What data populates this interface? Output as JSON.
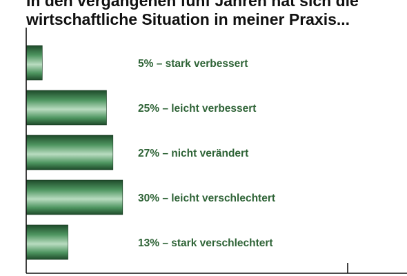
{
  "title_lines": [
    "In den vergangenen fünf Jahren hat sich die",
    "wirtschaftliche Situation in meiner Praxis..."
  ],
  "chart_data": {
    "type": "bar",
    "orientation": "horizontal",
    "title": "In den vergangenen fünf Jahren hat sich die wirtschaftliche Situation in meiner Praxis...",
    "categories": [
      "stark verbessert",
      "leicht verbessert",
      "nicht verändert",
      "leicht verschlechtert",
      "stark verschlechtert"
    ],
    "values": [
      5,
      25,
      27,
      30,
      13
    ],
    "labels": [
      "5% – stark verbessert",
      "25% – leicht verbessert",
      "27% – nicht verändert",
      "30% – leicht verschlechtert",
      "13% – stark verschlechtert"
    ],
    "unit": "%",
    "xlim": [
      0,
      100
    ],
    "colors": {
      "bar_dark": "#1e4a2a",
      "bar_mid": "#4e9560",
      "bar_light": "#b9dcc0",
      "label": "#2e6336",
      "axis": "#111111"
    }
  }
}
